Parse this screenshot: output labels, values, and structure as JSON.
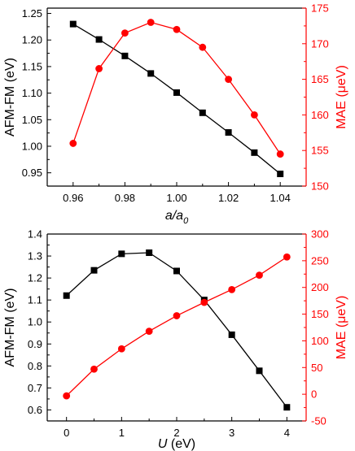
{
  "chart_data": [
    {
      "type": "line",
      "x": [
        0.96,
        0.97,
        0.98,
        0.99,
        1.0,
        1.01,
        1.02,
        1.03,
        1.04
      ],
      "xlim": [
        0.95,
        1.05
      ],
      "xticks": [
        0.96,
        0.98,
        1.0,
        1.02,
        1.04
      ],
      "xtick_labels": [
        "0.96",
        "0.98",
        "1.00",
        "1.02",
        "1.04"
      ],
      "xlabel_main": "a/a",
      "xlabel_sub": "0",
      "ylabel": "AFM-FM (eV)",
      "ylim": [
        0.925,
        1.26
      ],
      "yticks": [
        0.95,
        1.0,
        1.05,
        1.1,
        1.15,
        1.2,
        1.25
      ],
      "ytick_labels": [
        "0.95",
        "1.00",
        "1.05",
        "1.10",
        "1.15",
        "1.20",
        "1.25"
      ],
      "y2label": "MAE (μeV)",
      "y2lim": [
        150,
        175
      ],
      "y2ticks": [
        150,
        155,
        160,
        165,
        170,
        175
      ],
      "y2tick_labels": [
        "150",
        "155",
        "160",
        "165",
        "170",
        "175"
      ],
      "series": [
        {
          "axis": "left",
          "color": "#000000",
          "marker": "square",
          "values": [
            1.23,
            1.201,
            1.17,
            1.137,
            1.101,
            1.063,
            1.026,
            0.988,
            0.948
          ]
        },
        {
          "axis": "right",
          "color": "#ff0000",
          "marker": "circle",
          "values": [
            156.0,
            166.5,
            171.5,
            173.0,
            172.0,
            169.5,
            165.0,
            160.0,
            154.5
          ]
        }
      ]
    },
    {
      "type": "line",
      "x": [
        0,
        0.5,
        1.0,
        1.5,
        2.0,
        2.5,
        3.0,
        3.5,
        4.0
      ],
      "xlim": [
        -0.35,
        4.35
      ],
      "xticks": [
        0,
        1,
        2,
        3,
        4
      ],
      "xtick_labels": [
        "0",
        "1",
        "2",
        "3",
        "4"
      ],
      "xlabel_main": "U",
      "xlabel_rest": " (eV)",
      "ylabel": "AFM-FM (eV)",
      "ylim": [
        0.55,
        1.4
      ],
      "yticks": [
        0.6,
        0.7,
        0.8,
        0.9,
        1.0,
        1.1,
        1.2,
        1.3,
        1.4
      ],
      "ytick_labels": [
        "0.6",
        "0.7",
        "0.8",
        "0.9",
        "1.0",
        "1.1",
        "1.2",
        "1.3",
        "1.4"
      ],
      "y2label": "MAE (μeV)",
      "y2lim": [
        -50,
        300
      ],
      "y2ticks": [
        -50,
        0,
        50,
        100,
        150,
        200,
        250,
        300
      ],
      "y2tick_labels": [
        "-50",
        "0",
        "50",
        "100",
        "150",
        "200",
        "250",
        "300"
      ],
      "series": [
        {
          "axis": "left",
          "color": "#000000",
          "marker": "square",
          "values": [
            1.12,
            1.235,
            1.31,
            1.315,
            1.232,
            1.1,
            0.942,
            0.778,
            0.612
          ]
        },
        {
          "axis": "right",
          "color": "#ff0000",
          "marker": "circle",
          "values": [
            -3,
            47,
            85,
            118,
            147,
            172,
            196,
            223,
            257
          ]
        }
      ]
    }
  ]
}
